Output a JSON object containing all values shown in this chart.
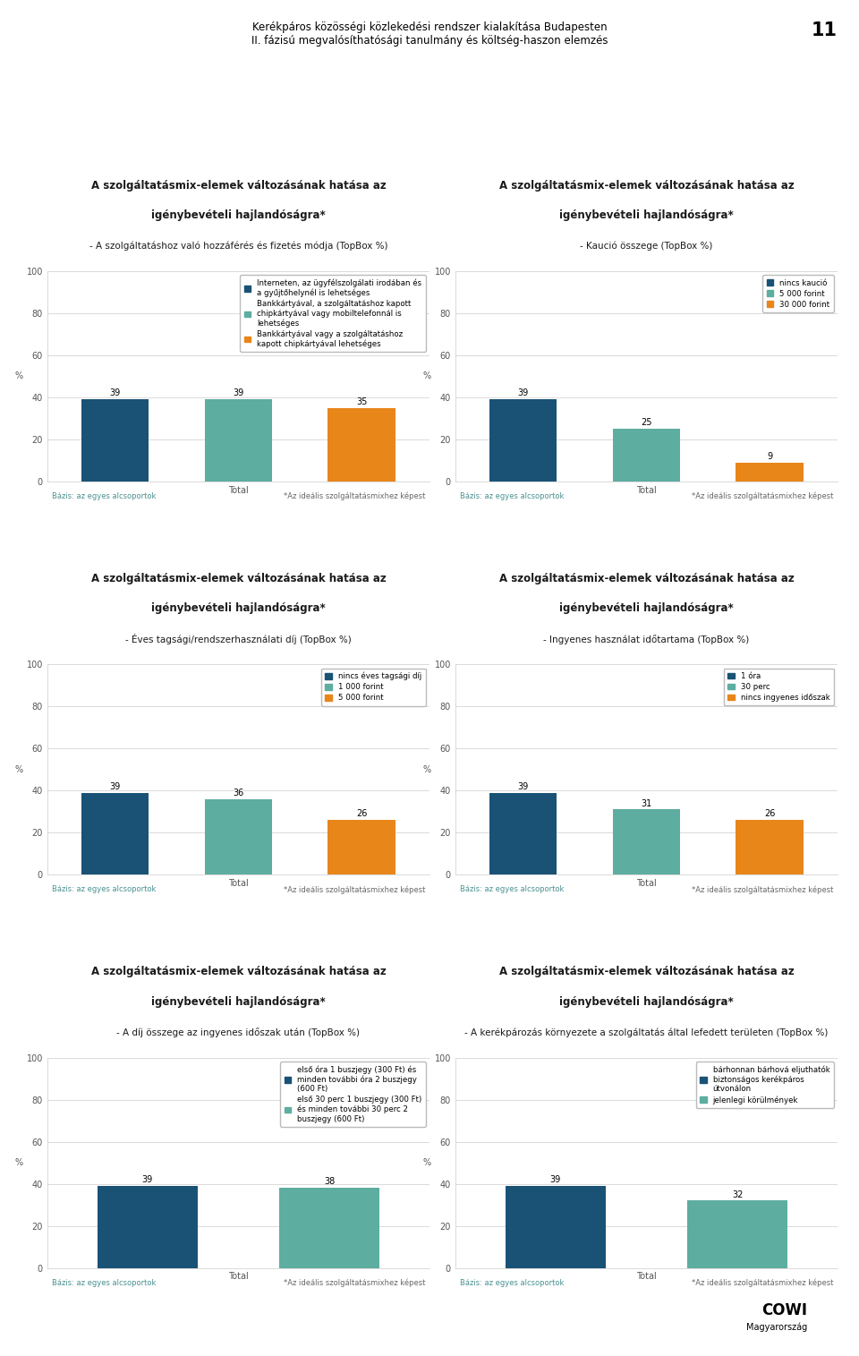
{
  "page_title1": "Kerékpáros közösségi közlekedési rendszer kialakítása Budapesten",
  "page_title2": "II. fázisú megvalósíthatósági tanulmány és költség-haszon elemzés",
  "page_number": "11",
  "charts": [
    {
      "title_line1": "A szolgáltatásmix-elemek változásának hatása az",
      "title_line2": "igénybevételi hajlandóságra*",
      "title_line3": "- A szolgáltatáshoz való hozzáférés és fizetés módja (TopBox %)",
      "bars": [
        39,
        39,
        35
      ],
      "bar_colors": [
        "#1a5276",
        "#5dada0",
        "#e8861a"
      ],
      "bar_labels": [
        "39",
        "39",
        "35"
      ],
      "xtick_label": "Total",
      "ylim": [
        0,
        100
      ],
      "yticks": [
        0,
        20,
        40,
        60,
        80,
        100
      ],
      "legend_items": [
        {
          "label": "Interneten, az ügyfélszolgálati irodában és\na gyűjtőhelynél is lehetséges",
          "color": "#1a5276"
        },
        {
          "label": "Bankkártyával, a szolgáltatáshoz kapott\nchipkártyával vagy mobiltelefonnál is\nlehetséges",
          "color": "#5dada0"
        },
        {
          "label": "Bankkártyával vagy a szolgáltatáshoz\nkapott chipkártyával lehetséges",
          "color": "#e8861a"
        }
      ],
      "basis_text": "Bázis: az egyes alcsoportok",
      "footnote_text": "*Az ideális szolgáltatásmixhez képest"
    },
    {
      "title_line1": "A szolgáltatásmix-elemek változásának hatása az",
      "title_line2": "igénybevételi hajlandóságra*",
      "title_line3": "- Kaució összege (TopBox %)",
      "bars": [
        39,
        25,
        9
      ],
      "bar_colors": [
        "#1a5276",
        "#5dada0",
        "#e8861a"
      ],
      "bar_labels": [
        "39",
        "25",
        "9"
      ],
      "xtick_label": "Total",
      "ylim": [
        0,
        100
      ],
      "yticks": [
        0,
        20,
        40,
        60,
        80,
        100
      ],
      "legend_items": [
        {
          "label": "nincs kaució",
          "color": "#1a5276"
        },
        {
          "label": "5 000 forint",
          "color": "#5dada0"
        },
        {
          "label": "30 000 forint",
          "color": "#e8861a"
        }
      ],
      "basis_text": "Bázis: az egyes alcsoportok",
      "footnote_text": "*Az ideális szolgáltatásmixhez képest"
    },
    {
      "title_line1": "A szolgáltatásmix-elemek változásának hatása az",
      "title_line2": "igénybevételi hajlandóságra*",
      "title_line3": "- Éves tagsági/rendszerhasználati díj (TopBox %)",
      "bars": [
        39,
        36,
        26
      ],
      "bar_colors": [
        "#1a5276",
        "#5dada0",
        "#e8861a"
      ],
      "bar_labels": [
        "39",
        "36",
        "26"
      ],
      "xtick_label": "Total",
      "ylim": [
        0,
        100
      ],
      "yticks": [
        0,
        20,
        40,
        60,
        80,
        100
      ],
      "legend_items": [
        {
          "label": "nincs éves tagsági díj",
          "color": "#1a5276"
        },
        {
          "label": "1 000 forint",
          "color": "#5dada0"
        },
        {
          "label": "5 000 forint",
          "color": "#e8861a"
        }
      ],
      "basis_text": "Bázis: az egyes alcsoportok",
      "footnote_text": "*Az ideális szolgáltatásmixhez képest"
    },
    {
      "title_line1": "A szolgáltatásmix-elemek változásának hatása az",
      "title_line2": "igénybevételi hajlandóságra*",
      "title_line3": "- Ingyenes használat időtartama (TopBox %)",
      "bars": [
        39,
        31,
        26
      ],
      "bar_colors": [
        "#1a5276",
        "#5dada0",
        "#e8861a"
      ],
      "bar_labels": [
        "39",
        "31",
        "26"
      ],
      "xtick_label": "Total",
      "ylim": [
        0,
        100
      ],
      "yticks": [
        0,
        20,
        40,
        60,
        80,
        100
      ],
      "legend_items": [
        {
          "label": "1 óra",
          "color": "#1a5276"
        },
        {
          "label": "30 perc",
          "color": "#5dada0"
        },
        {
          "label": "nincs ingyenes időszak",
          "color": "#e8861a"
        }
      ],
      "basis_text": "Bázis: az egyes alcsoportok",
      "footnote_text": "*Az ideális szolgáltatásmixhez képest"
    },
    {
      "title_line1": "A szolgáltatásmix-elemek változásának hatása az",
      "title_line2": "igénybevételi hajlandóságra*",
      "title_line3": "- A díj összege az ingyenes időszak után (TopBox %)",
      "bars": [
        39,
        38
      ],
      "bar_colors": [
        "#1a5276",
        "#5dada0"
      ],
      "bar_labels": [
        "39",
        "38"
      ],
      "xtick_label": "Total",
      "ylim": [
        0,
        100
      ],
      "yticks": [
        0,
        20,
        40,
        60,
        80,
        100
      ],
      "legend_items": [
        {
          "label": "első óra 1 buszjegy (300 Ft) és\nminden további óra 2 buszjegy\n(600 Ft)",
          "color": "#1a5276"
        },
        {
          "label": "első 30 perc 1 buszjegy (300 Ft)\nés minden további 30 perc 2\nbuszjegy (600 Ft)",
          "color": "#5dada0"
        }
      ],
      "basis_text": "Bázis: az egyes alcsoportok",
      "footnote_text": "*Az ideális szolgáltatásmixhez képest"
    },
    {
      "title_line1": "A szolgáltatásmix-elemek változásának hatása az",
      "title_line2": "igénybevételi hajlandóságra*",
      "title_line3": "- A kerékpározás környezete a szolgáltatás által lefedett területen (TopBox %)",
      "bars": [
        39,
        32
      ],
      "bar_colors": [
        "#1a5276",
        "#5dada0"
      ],
      "bar_labels": [
        "39",
        "32"
      ],
      "xtick_label": "Total",
      "ylim": [
        0,
        100
      ],
      "yticks": [
        0,
        20,
        40,
        60,
        80,
        100
      ],
      "legend_items": [
        {
          "label": "bárhonnan bárhová eljuthatók\nbiztonságos kerékpáros\nútvonálon",
          "color": "#1a5276"
        },
        {
          "label": "jelenlegi körülmények",
          "color": "#5dada0"
        }
      ],
      "basis_text": "Bázis: az egyes alcsoportok",
      "footnote_text": "*Az ideális szolgáltatásmixhez képest"
    }
  ],
  "bg_color": "#ffffff",
  "axis_color": "#cccccc",
  "tick_color": "#555555",
  "basis_color": "#4a9090",
  "footnote_color": "#666666",
  "title_bold_color": "#1a1a1a",
  "bar_value_fontsize": 7,
  "axis_label_fontsize": 7,
  "legend_fontsize": 6.2,
  "chart_title_fontsize": 8.5,
  "subtitle_fontsize": 7.5,
  "page_title_fontsize": 8.5
}
